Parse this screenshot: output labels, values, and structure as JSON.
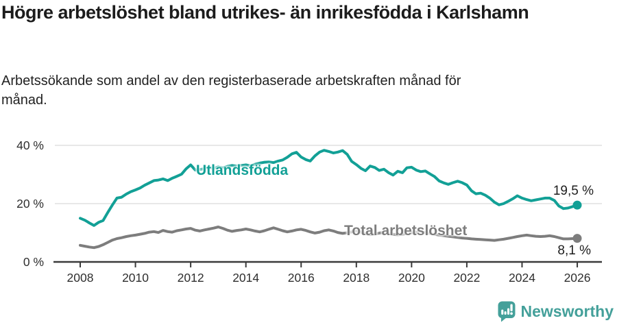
{
  "header": {
    "title": "Högre arbetslöshet bland utrikes- än inrikesfödda i Karlshamn",
    "subtitle": "Arbetssökande som andel av den registerbaserade arbetskraften månad för månad."
  },
  "footer": {
    "brand": "Newsworthy"
  },
  "colors": {
    "teal": "#12a096",
    "gray": "#7d7d7d",
    "logo_teal": "#44a09a",
    "axis": "#3a3a3a",
    "grid": "#dadada",
    "tick_text": "#2e2e2e",
    "text": "#1c1c1c"
  },
  "chart_data": {
    "type": "line",
    "title": "Högre arbetslöshet bland utrikes- än inrikesfödda i Karlshamn",
    "xlabel": "",
    "ylabel": "",
    "x_ticks": [
      2008,
      2010,
      2012,
      2014,
      2016,
      2018,
      2020,
      2022,
      2024,
      2026
    ],
    "y_ticks": [
      {
        "value": 0,
        "label": "0 %"
      },
      {
        "value": 20,
        "label": "20 %"
      },
      {
        "value": 40,
        "label": "40 %"
      }
    ],
    "xlim": [
      2007.1,
      2026.9
    ],
    "ylim": [
      0,
      43
    ],
    "grid": "horizontal",
    "legend_position": "inline-labels",
    "series": [
      {
        "id": "utlandsfodda",
        "name": "Utlandsfödda",
        "color": "#12a096",
        "end_label": "19,5 %",
        "end_value": 19.5,
        "points": [
          [
            2008.0,
            15.0
          ],
          [
            2008.17,
            14.3
          ],
          [
            2008.33,
            13.4
          ],
          [
            2008.5,
            12.5
          ],
          [
            2008.67,
            13.6
          ],
          [
            2008.83,
            14.2
          ],
          [
            2009.0,
            17.0
          ],
          [
            2009.17,
            19.6
          ],
          [
            2009.33,
            21.9
          ],
          [
            2009.5,
            22.2
          ],
          [
            2009.67,
            23.3
          ],
          [
            2009.83,
            24.1
          ],
          [
            2010.0,
            24.7
          ],
          [
            2010.17,
            25.4
          ],
          [
            2010.33,
            26.3
          ],
          [
            2010.5,
            27.1
          ],
          [
            2010.67,
            27.9
          ],
          [
            2010.83,
            28.1
          ],
          [
            2011.0,
            28.5
          ],
          [
            2011.17,
            27.9
          ],
          [
            2011.33,
            28.7
          ],
          [
            2011.5,
            29.4
          ],
          [
            2011.67,
            30.1
          ],
          [
            2011.83,
            31.9
          ],
          [
            2012.0,
            33.3
          ],
          [
            2012.17,
            31.5
          ],
          [
            2012.33,
            31.7
          ],
          [
            2012.5,
            32.0
          ],
          [
            2012.67,
            32.4
          ],
          [
            2012.83,
            32.1
          ],
          [
            2013.0,
            32.6
          ],
          [
            2013.17,
            32.2
          ],
          [
            2013.33,
            32.8
          ],
          [
            2013.5,
            33.1
          ],
          [
            2013.67,
            32.9
          ],
          [
            2013.83,
            33.1
          ],
          [
            2014.0,
            33.3
          ],
          [
            2014.17,
            33.0
          ],
          [
            2014.33,
            33.5
          ],
          [
            2014.5,
            33.9
          ],
          [
            2014.67,
            34.2
          ],
          [
            2014.83,
            34.3
          ],
          [
            2015.0,
            34.1
          ],
          [
            2015.17,
            34.6
          ],
          [
            2015.33,
            35.0
          ],
          [
            2015.5,
            35.9
          ],
          [
            2015.67,
            37.1
          ],
          [
            2015.83,
            37.6
          ],
          [
            2016.0,
            36.0
          ],
          [
            2016.17,
            35.1
          ],
          [
            2016.33,
            34.6
          ],
          [
            2016.5,
            36.4
          ],
          [
            2016.67,
            37.7
          ],
          [
            2016.83,
            38.3
          ],
          [
            2017.0,
            37.9
          ],
          [
            2017.17,
            37.4
          ],
          [
            2017.33,
            37.7
          ],
          [
            2017.5,
            38.2
          ],
          [
            2017.67,
            36.9
          ],
          [
            2017.83,
            34.5
          ],
          [
            2018.0,
            33.4
          ],
          [
            2018.17,
            32.1
          ],
          [
            2018.33,
            31.3
          ],
          [
            2018.5,
            32.9
          ],
          [
            2018.67,
            32.4
          ],
          [
            2018.83,
            31.4
          ],
          [
            2019.0,
            31.8
          ],
          [
            2019.17,
            30.6
          ],
          [
            2019.33,
            29.8
          ],
          [
            2019.5,
            31.1
          ],
          [
            2019.67,
            30.6
          ],
          [
            2019.83,
            32.3
          ],
          [
            2020.0,
            32.5
          ],
          [
            2020.17,
            31.5
          ],
          [
            2020.33,
            31.0
          ],
          [
            2020.5,
            31.2
          ],
          [
            2020.67,
            30.2
          ],
          [
            2020.83,
            29.3
          ],
          [
            2021.0,
            27.8
          ],
          [
            2021.17,
            27.1
          ],
          [
            2021.33,
            26.6
          ],
          [
            2021.5,
            27.2
          ],
          [
            2021.67,
            27.7
          ],
          [
            2021.83,
            27.2
          ],
          [
            2022.0,
            26.4
          ],
          [
            2022.17,
            24.4
          ],
          [
            2022.33,
            23.4
          ],
          [
            2022.5,
            23.6
          ],
          [
            2022.67,
            22.9
          ],
          [
            2022.83,
            21.9
          ],
          [
            2023.0,
            20.5
          ],
          [
            2023.17,
            19.6
          ],
          [
            2023.33,
            20.0
          ],
          [
            2023.5,
            20.8
          ],
          [
            2023.67,
            21.7
          ],
          [
            2023.83,
            22.7
          ],
          [
            2024.0,
            21.9
          ],
          [
            2024.17,
            21.4
          ],
          [
            2024.33,
            21.0
          ],
          [
            2024.5,
            21.3
          ],
          [
            2024.67,
            21.6
          ],
          [
            2024.83,
            21.9
          ],
          [
            2025.0,
            21.9
          ],
          [
            2025.17,
            21.1
          ],
          [
            2025.33,
            19.2
          ],
          [
            2025.5,
            18.3
          ],
          [
            2025.67,
            18.5
          ],
          [
            2025.83,
            19.0
          ],
          [
            2026.0,
            19.5
          ]
        ]
      },
      {
        "id": "total-arbetsloshet",
        "name": "Total arbetslöshet",
        "color": "#7d7d7d",
        "end_label": "8,1 %",
        "end_value": 8.1,
        "points": [
          [
            2008.0,
            5.7
          ],
          [
            2008.17,
            5.4
          ],
          [
            2008.33,
            5.1
          ],
          [
            2008.5,
            4.9
          ],
          [
            2008.67,
            5.3
          ],
          [
            2008.83,
            5.9
          ],
          [
            2009.0,
            6.7
          ],
          [
            2009.17,
            7.5
          ],
          [
            2009.33,
            8.0
          ],
          [
            2009.5,
            8.3
          ],
          [
            2009.67,
            8.7
          ],
          [
            2009.83,
            9.0
          ],
          [
            2010.0,
            9.2
          ],
          [
            2010.17,
            9.5
          ],
          [
            2010.33,
            9.8
          ],
          [
            2010.5,
            10.2
          ],
          [
            2010.67,
            10.4
          ],
          [
            2010.83,
            10.1
          ],
          [
            2011.0,
            10.8
          ],
          [
            2011.17,
            10.4
          ],
          [
            2011.33,
            10.2
          ],
          [
            2011.5,
            10.7
          ],
          [
            2011.67,
            11.0
          ],
          [
            2011.83,
            11.3
          ],
          [
            2012.0,
            11.5
          ],
          [
            2012.17,
            10.9
          ],
          [
            2012.33,
            10.6
          ],
          [
            2012.5,
            11.0
          ],
          [
            2012.67,
            11.3
          ],
          [
            2012.83,
            11.6
          ],
          [
            2013.0,
            12.0
          ],
          [
            2013.17,
            11.5
          ],
          [
            2013.33,
            10.9
          ],
          [
            2013.5,
            10.5
          ],
          [
            2013.67,
            10.8
          ],
          [
            2013.83,
            11.0
          ],
          [
            2014.0,
            11.3
          ],
          [
            2014.17,
            11.0
          ],
          [
            2014.33,
            10.6
          ],
          [
            2014.5,
            10.3
          ],
          [
            2014.67,
            10.7
          ],
          [
            2014.83,
            11.2
          ],
          [
            2015.0,
            11.7
          ],
          [
            2015.17,
            11.2
          ],
          [
            2015.33,
            10.7
          ],
          [
            2015.5,
            10.3
          ],
          [
            2015.67,
            10.6
          ],
          [
            2015.83,
            11.0
          ],
          [
            2016.0,
            11.2
          ],
          [
            2016.17,
            10.8
          ],
          [
            2016.33,
            10.3
          ],
          [
            2016.5,
            9.9
          ],
          [
            2016.67,
            10.2
          ],
          [
            2016.83,
            10.7
          ],
          [
            2017.0,
            11.0
          ],
          [
            2017.17,
            10.6
          ],
          [
            2017.33,
            10.1
          ],
          [
            2017.5,
            9.8
          ],
          [
            2017.67,
            10.0
          ],
          [
            2017.83,
            10.3
          ],
          [
            2018.0,
            10.6
          ],
          [
            2018.17,
            10.2
          ],
          [
            2018.33,
            9.7
          ],
          [
            2018.5,
            9.4
          ],
          [
            2018.67,
            9.6
          ],
          [
            2018.83,
            9.9
          ],
          [
            2019.0,
            10.1
          ],
          [
            2019.17,
            9.8
          ],
          [
            2019.33,
            9.5
          ],
          [
            2019.5,
            9.3
          ],
          [
            2019.67,
            9.5
          ],
          [
            2019.83,
            9.8
          ],
          [
            2020.0,
            10.0
          ],
          [
            2020.17,
            10.2
          ],
          [
            2020.33,
            10.3
          ],
          [
            2020.5,
            10.1
          ],
          [
            2020.67,
            9.8
          ],
          [
            2020.83,
            9.5
          ],
          [
            2021.0,
            9.2
          ],
          [
            2021.17,
            9.0
          ],
          [
            2021.33,
            8.8
          ],
          [
            2021.5,
            8.6
          ],
          [
            2021.67,
            8.4
          ],
          [
            2021.83,
            8.2
          ],
          [
            2022.0,
            8.1
          ],
          [
            2022.17,
            7.9
          ],
          [
            2022.33,
            7.8
          ],
          [
            2022.5,
            7.7
          ],
          [
            2022.67,
            7.6
          ],
          [
            2022.83,
            7.5
          ],
          [
            2023.0,
            7.4
          ],
          [
            2023.17,
            7.6
          ],
          [
            2023.33,
            7.8
          ],
          [
            2023.5,
            8.1
          ],
          [
            2023.67,
            8.4
          ],
          [
            2023.83,
            8.7
          ],
          [
            2024.0,
            9.0
          ],
          [
            2024.17,
            9.2
          ],
          [
            2024.33,
            9.0
          ],
          [
            2024.5,
            8.8
          ],
          [
            2024.67,
            8.7
          ],
          [
            2024.83,
            8.8
          ],
          [
            2025.0,
            9.0
          ],
          [
            2025.17,
            8.7
          ],
          [
            2025.33,
            8.3
          ],
          [
            2025.5,
            7.9
          ],
          [
            2025.67,
            7.9
          ],
          [
            2025.83,
            8.0
          ],
          [
            2026.0,
            8.1
          ]
        ]
      }
    ]
  }
}
